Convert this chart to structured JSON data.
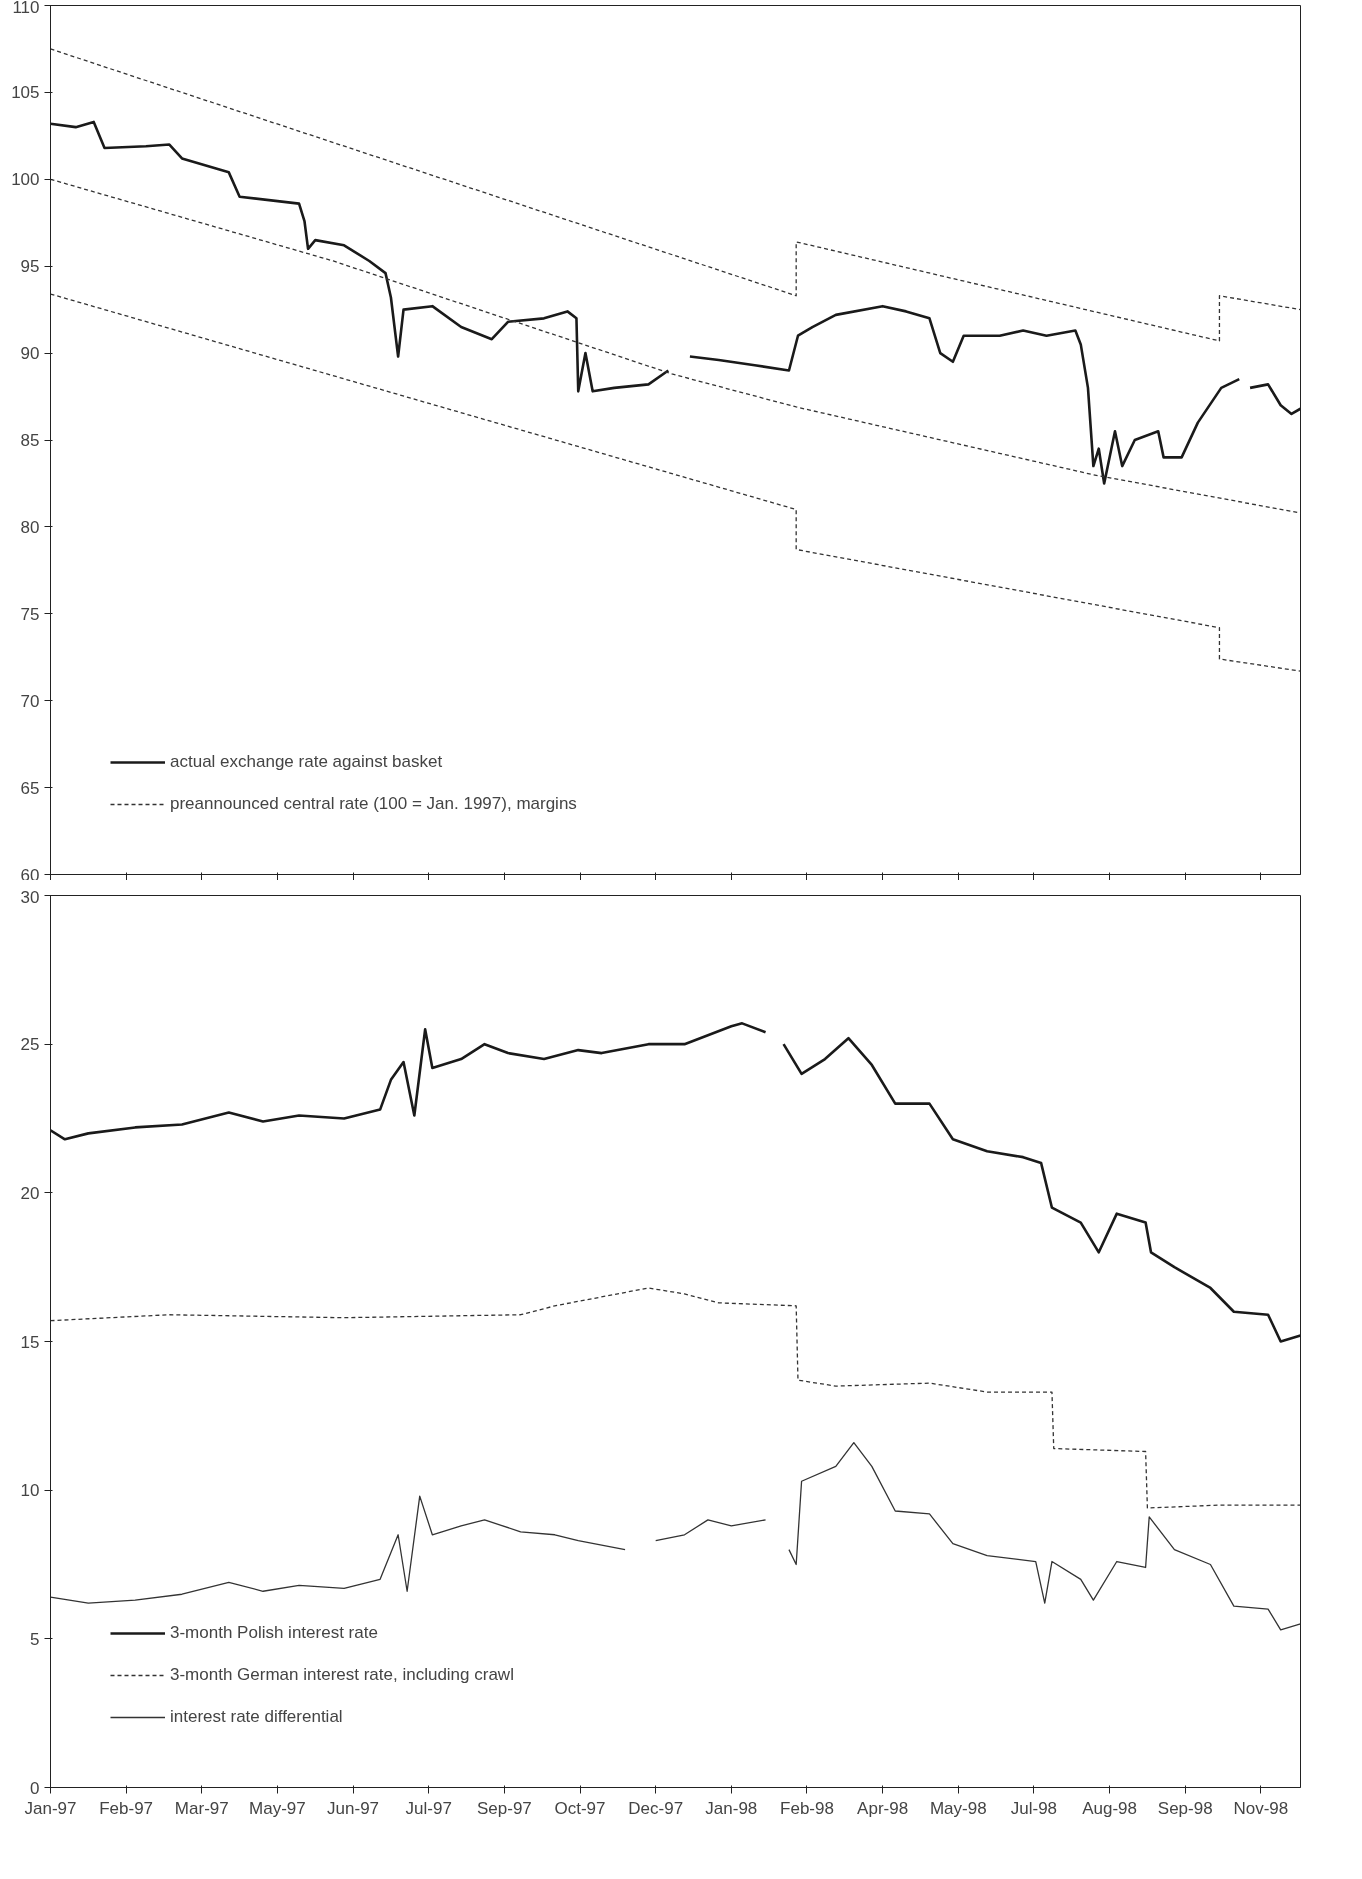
{
  "chart_data": [
    {
      "type": "line",
      "xlim": [
        "1997-01-02",
        "1998-11-27"
      ],
      "ylim": [
        60,
        110
      ],
      "yticks": [
        60,
        65,
        70,
        75,
        80,
        85,
        90,
        95,
        100,
        105,
        110
      ],
      "xticks": [
        {
          "value": "1997-01-02",
          "label": null
        },
        {
          "value": "1997-02-13",
          "label": null
        },
        {
          "value": "1997-03-27",
          "label": null
        },
        {
          "value": "1997-05-08",
          "label": null
        },
        {
          "value": "1997-06-19",
          "label": null
        },
        {
          "value": "1997-07-31",
          "label": null
        },
        {
          "value": "1997-09-11",
          "label": null
        },
        {
          "value": "1997-10-23",
          "label": null
        },
        {
          "value": "1997-12-04",
          "label": null
        },
        {
          "value": "1998-01-15",
          "label": null
        },
        {
          "value": "1998-02-26",
          "label": null
        },
        {
          "value": "1998-04-09",
          "label": null
        },
        {
          "value": "1998-05-21",
          "label": null
        },
        {
          "value": "1998-07-02",
          "label": null
        },
        {
          "value": "1998-08-13",
          "label": null
        },
        {
          "value": "1998-09-24",
          "label": null
        },
        {
          "value": "1998-11-05",
          "label": null
        }
      ],
      "tick_labels": "y",
      "grid": false,
      "legend": "bottom left",
      "marker": "none",
      "series": [
        {
          "name": "actual exchange rate against basket",
          "color": "#1a1a1a",
          "line_style": "solid",
          "x": [
            "1997-01-02",
            "1997-01-16",
            "1997-01-26",
            "1997-02-01",
            "1997-02-24",
            "1997-03-09",
            "1997-03-16",
            "1997-04-11",
            "1997-04-17",
            "1997-05-20",
            "1997-05-23",
            "1997-05-25",
            "1997-05-29",
            "1997-06-14",
            "1997-06-28",
            "1997-07-07",
            "1997-07-10",
            "1997-07-14",
            "1997-07-17",
            "1997-08-02",
            "1997-08-18",
            "1997-09-04",
            "1997-09-13",
            "1997-10-03",
            "1997-10-16",
            "1997-10-21",
            "1997-10-22",
            "1997-10-26",
            "1997-10-30",
            "1997-11-11",
            "1997-11-30",
            "1997-12-11",
            "1997-12-13",
            "1997-12-23",
            "1998-01-08",
            "1998-01-28",
            "1998-02-16",
            "1998-02-21",
            "1998-03-01",
            "1998-03-14",
            "1998-04-09",
            "1998-04-22",
            "1998-05-05",
            "1998-05-11",
            "1998-05-18",
            "1998-05-24",
            "1998-06-13",
            "1998-06-26",
            "1998-07-09",
            "1998-07-25",
            "1998-07-28",
            "1998-08-01",
            "1998-08-04",
            "1998-08-07",
            "1998-08-10",
            "1998-08-16",
            "1998-08-20",
            "1998-08-27",
            "1998-09-09",
            "1998-09-12",
            "1998-09-22",
            "1998-10-01",
            "1998-10-14",
            "1998-10-24",
            "1998-10-27",
            "1998-10-30",
            "1998-11-09",
            "1998-11-16",
            "1998-11-22",
            "1998-11-27"
          ],
          "values": [
            103.2,
            103.0,
            103.3,
            101.8,
            101.9,
            102.0,
            101.2,
            100.4,
            99.0,
            98.6,
            97.6,
            96.0,
            96.5,
            96.2,
            95.3,
            94.6,
            93.2,
            89.8,
            92.5,
            92.7,
            91.5,
            90.8,
            91.8,
            92.0,
            92.4,
            92.0,
            87.8,
            90.0,
            87.8,
            88.0,
            88.2,
            89.0,
            null,
            89.8,
            89.6,
            89.3,
            89.0,
            91.0,
            91.5,
            92.2,
            92.7,
            92.4,
            92.0,
            90.0,
            89.5,
            91.0,
            91.0,
            91.3,
            91.0,
            91.3,
            90.5,
            88.0,
            83.5,
            84.5,
            82.5,
            85.5,
            83.5,
            85.0,
            85.5,
            84.0,
            84.0,
            86.0,
            88.0,
            88.5,
            null,
            88.0,
            88.2,
            87.0,
            86.5,
            86.8
          ]
        },
        {
          "name": "preannounced central rate (100 = Jan. 1997), margins",
          "color": "#333333",
          "line_style": "dashed",
          "x": [
            "1997-01-02",
            "1997-06-08",
            "1997-12-13",
            "1998-02-20",
            "1998-08-04",
            "1998-11-27"
          ],
          "values": [
            100,
            95.3,
            88.8,
            86.9,
            83.0,
            80.8
          ]
        },
        {
          "color": "#333333",
          "line_style": "dashed",
          "x": [
            "1997-01-02",
            "1998-02-20",
            "1998-02-20",
            "1998-10-13",
            "1998-10-13",
            "1998-11-27"
          ],
          "values": [
            107.5,
            93.3,
            96.4,
            90.7,
            93.3,
            92.5
          ]
        },
        {
          "color": "#333333",
          "line_style": "dashed",
          "x": [
            "1997-01-02",
            "1998-02-20",
            "1998-02-20",
            "1998-10-13",
            "1998-10-13",
            "1998-11-27"
          ],
          "values": [
            93.4,
            81.0,
            78.7,
            74.2,
            72.4,
            71.7
          ]
        }
      ]
    },
    {
      "type": "line",
      "xlim": [
        "1997-01-02",
        "1998-11-27"
      ],
      "ylim": [
        0,
        30
      ],
      "yticks": [
        0,
        5,
        10,
        15,
        20,
        25,
        30
      ],
      "xticks": [
        {
          "value": "1997-01-02",
          "label": "Jan-97"
        },
        {
          "value": "1997-02-13",
          "label": "Feb-97"
        },
        {
          "value": "1997-03-27",
          "label": "Mar-97"
        },
        {
          "value": "1997-05-08",
          "label": "May-97"
        },
        {
          "value": "1997-06-19",
          "label": "Jun-97"
        },
        {
          "value": "1997-07-31",
          "label": "Jul-97"
        },
        {
          "value": "1997-09-11",
          "label": "Sep-97"
        },
        {
          "value": "1997-10-23",
          "label": "Oct-97"
        },
        {
          "value": "1997-12-04",
          "label": "Dec-97"
        },
        {
          "value": "1998-01-15",
          "label": "Jan-98"
        },
        {
          "value": "1998-02-26",
          "label": "Feb-98"
        },
        {
          "value": "1998-04-09",
          "label": "Apr-98"
        },
        {
          "value": "1998-05-21",
          "label": "May-98"
        },
        {
          "value": "1998-07-02",
          "label": "Jul-98"
        },
        {
          "value": "1998-08-13",
          "label": "Aug-98"
        },
        {
          "value": "1998-09-24",
          "label": "Sep-98"
        },
        {
          "value": "1998-11-05",
          "label": "Nov-98"
        }
      ],
      "grid": false,
      "legend": "bottom left",
      "marker": "none",
      "series": [
        {
          "name": "3-month Polish interest rate",
          "color": "#1a1a1a",
          "line_style": "solid",
          "x": [
            "1997-01-02",
            "1997-01-10",
            "1997-01-23",
            "1997-02-18",
            "1997-03-16",
            "1997-04-11",
            "1997-04-30",
            "1997-05-20",
            "1997-06-14",
            "1997-07-04",
            "1997-07-10",
            "1997-07-17",
            "1997-07-23",
            "1997-07-29",
            "1997-08-02",
            "1997-08-18",
            "1997-08-31",
            "1997-09-13",
            "1997-10-03",
            "1997-10-22",
            "1997-11-04",
            "1997-11-30",
            "1997-12-20",
            "1998-01-02",
            "1998-01-15",
            "1998-01-21",
            "1998-02-03",
            "1998-02-11",
            "1998-02-13",
            "1998-02-23",
            "1998-03-08",
            "1998-03-21",
            "1998-04-03",
            "1998-04-16",
            "1998-05-05",
            "1998-05-18",
            "1998-06-06",
            "1998-06-26",
            "1998-07-06",
            "1998-07-12",
            "1998-07-28",
            "1998-08-07",
            "1998-08-17",
            "1998-09-02",
            "1998-09-05",
            "1998-09-18",
            "1998-10-08",
            "1998-10-21",
            "1998-11-09",
            "1998-11-16",
            "1998-11-27"
          ],
          "values": [
            22.1,
            21.8,
            22.0,
            22.2,
            22.3,
            22.7,
            22.4,
            22.6,
            22.5,
            22.8,
            23.8,
            24.4,
            22.6,
            25.5,
            24.2,
            24.5,
            25.0,
            24.7,
            24.5,
            24.8,
            24.7,
            25.0,
            25.0,
            25.3,
            25.6,
            25.7,
            25.4,
            null,
            25.0,
            24.0,
            24.5,
            25.2,
            24.3,
            23.0,
            23.0,
            21.8,
            21.4,
            21.2,
            21.0,
            19.5,
            19.0,
            18.0,
            19.3,
            19.0,
            18.0,
            17.5,
            16.8,
            16.0,
            15.9,
            15.0,
            15.2
          ]
        },
        {
          "name": "3-month German interest rate, including crawl",
          "color": "#333333",
          "line_style": "dashed",
          "x": [
            "1997-01-02",
            "1997-03-09",
            "1997-06-14",
            "1997-09-20",
            "1997-10-09",
            "1997-11-30",
            "1997-12-20",
            "1998-01-08",
            "1998-02-20",
            "1998-02-21",
            "1998-03-14",
            "1998-05-05",
            "1998-06-06",
            "1998-07-12",
            "1998-07-13",
            "1998-09-02",
            "1998-09-03",
            "1998-10-14",
            "1998-11-27"
          ],
          "values": [
            15.7,
            15.9,
            15.8,
            15.9,
            16.2,
            16.8,
            16.6,
            16.3,
            16.2,
            13.7,
            13.5,
            13.6,
            13.3,
            13.3,
            11.4,
            11.3,
            9.4,
            9.5,
            9.5
          ]
        },
        {
          "name": "interest rate differential",
          "color": "#333333",
          "line_style": "solid",
          "x": [
            "1997-01-02",
            "1997-01-23",
            "1997-02-18",
            "1997-03-16",
            "1997-04-11",
            "1997-04-30",
            "1997-05-20",
            "1997-06-14",
            "1997-07-04",
            "1997-07-14",
            "1997-07-19",
            "1997-07-26",
            "1997-08-02",
            "1997-08-18",
            "1997-08-31",
            "1997-09-20",
            "1997-10-09",
            "1997-10-22",
            "1997-11-17",
            "1997-11-27",
            "1997-12-04",
            "1997-12-20",
            "1998-01-02",
            "1998-01-15",
            "1998-02-03",
            "1998-02-11",
            "1998-02-16",
            "1998-02-20",
            "1998-02-23",
            "1998-03-14",
            "1998-03-24",
            "1998-04-03",
            "1998-04-16",
            "1998-05-05",
            "1998-05-18",
            "1998-06-06",
            "1998-07-03",
            "1998-07-08",
            "1998-07-12",
            "1998-07-28",
            "1998-08-04",
            "1998-08-17",
            "1998-09-02",
            "1998-09-04",
            "1998-09-18",
            "1998-10-08",
            "1998-10-21",
            "1998-11-09",
            "1998-11-16",
            "1998-11-27"
          ],
          "values": [
            6.4,
            6.2,
            6.3,
            6.5,
            6.9,
            6.6,
            6.8,
            6.7,
            7.0,
            8.5,
            6.6,
            9.8,
            8.5,
            8.8,
            9.0,
            8.6,
            8.5,
            8.3,
            8.0,
            null,
            8.3,
            8.5,
            9.0,
            8.8,
            9.0,
            null,
            8.0,
            7.5,
            10.3,
            10.8,
            11.6,
            10.8,
            9.3,
            9.2,
            8.2,
            7.8,
            7.6,
            6.2,
            7.6,
            7.0,
            6.3,
            7.6,
            7.4,
            9.1,
            8.0,
            7.5,
            6.1,
            6.0,
            5.3,
            5.5
          ]
        }
      ]
    }
  ]
}
